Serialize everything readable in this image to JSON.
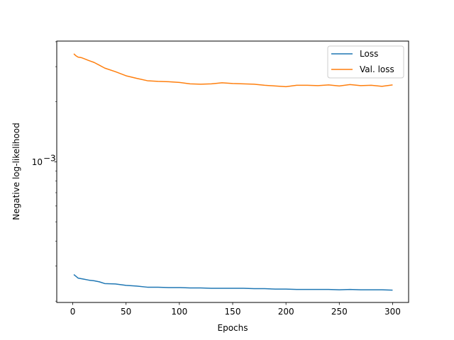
{
  "chart_data": {
    "type": "line",
    "title": "",
    "xlabel": "Epochs",
    "ylabel": "Negative log-likelihood",
    "xscale": "linear",
    "yscale": "log",
    "xlim": [
      -15,
      315
    ],
    "ylim": [
      0.000197,
      0.00403
    ],
    "x_ticks": [
      0,
      50,
      100,
      150,
      200,
      250,
      300
    ],
    "x_tick_labels": [
      "0",
      "50",
      "100",
      "150",
      "200",
      "250",
      "300"
    ],
    "y_ticks": [
      0.001
    ],
    "y_tick_labels": [
      "10",
      "−3"
    ],
    "grid": false,
    "legend_position": "top-right",
    "series": [
      {
        "name": "Loss",
        "color": "#1f77b4",
        "x": [
          1,
          5,
          10,
          15,
          20,
          25,
          30,
          40,
          50,
          60,
          70,
          80,
          90,
          100,
          110,
          120,
          130,
          140,
          150,
          160,
          170,
          180,
          190,
          200,
          210,
          220,
          230,
          240,
          250,
          260,
          270,
          280,
          290,
          300
        ],
        "y": [
          0.000272,
          0.000261,
          0.000258,
          0.000255,
          0.000253,
          0.00025,
          0.000245,
          0.000244,
          0.00024,
          0.000238,
          0.000235,
          0.000235,
          0.000234,
          0.000234,
          0.000233,
          0.000233,
          0.000232,
          0.000232,
          0.000232,
          0.000232,
          0.000231,
          0.000231,
          0.00023,
          0.00023,
          0.000229,
          0.000229,
          0.000229,
          0.000229,
          0.000228,
          0.000229,
          0.000228,
          0.000228,
          0.000228,
          0.000227
        ]
      },
      {
        "name": "Val. loss",
        "color": "#ff7f0e",
        "x": [
          1,
          3,
          5,
          8,
          10,
          15,
          20,
          25,
          30,
          40,
          50,
          60,
          70,
          80,
          90,
          100,
          110,
          120,
          130,
          140,
          150,
          160,
          170,
          180,
          190,
          200,
          210,
          220,
          230,
          240,
          250,
          260,
          270,
          280,
          290,
          300
        ],
        "y": [
          0.00348,
          0.0034,
          0.00335,
          0.00333,
          0.0033,
          0.00322,
          0.00315,
          0.00305,
          0.00295,
          0.00283,
          0.0027,
          0.00262,
          0.00255,
          0.00253,
          0.00252,
          0.0025,
          0.00246,
          0.00245,
          0.00246,
          0.00249,
          0.00247,
          0.00246,
          0.00245,
          0.00242,
          0.0024,
          0.00238,
          0.00242,
          0.00242,
          0.00241,
          0.00243,
          0.0024,
          0.00244,
          0.00241,
          0.00242,
          0.00239,
          0.00243
        ]
      }
    ]
  }
}
